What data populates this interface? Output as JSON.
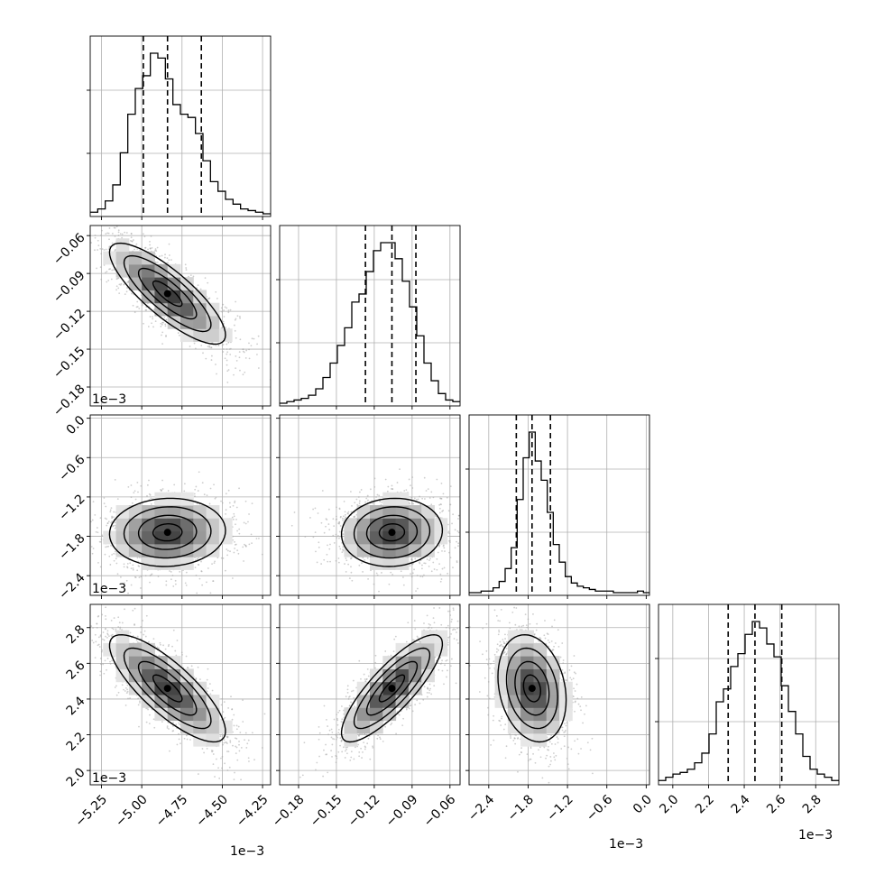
{
  "chart_data": {
    "type": "corner",
    "grid": true,
    "parameters": [
      {
        "range": [
          -5.32,
          -4.2
        ],
        "ticks": [
          -5.25,
          -5.0,
          -4.75,
          -4.5,
          -4.25
        ],
        "tick_labels": [
          "−5.25",
          "−5.00",
          "−4.75",
          "−4.50",
          "−4.25"
        ],
        "offset_label": "1e−3",
        "quantiles": [
          -4.99,
          -4.84,
          -4.63
        ]
      },
      {
        "range": [
          -0.195,
          -0.052
        ],
        "ticks": [
          -0.18,
          -0.15,
          -0.12,
          -0.09,
          -0.06
        ],
        "tick_labels": [
          "−0.18",
          "−0.15",
          "−0.12",
          "−0.09",
          "−0.06"
        ],
        "offset_label": "1e−3",
        "quantiles": [
          -0.127,
          -0.106,
          -0.087
        ]
      },
      {
        "range": [
          -2.7,
          0.05
        ],
        "ticks": [
          -2.4,
          -1.8,
          -1.2,
          -0.6,
          0.0
        ],
        "tick_labels": [
          "−2.4",
          "−1.8",
          "−1.2",
          "−0.6",
          "0.0"
        ],
        "offset_label": "1e−3",
        "quantiles": [
          -1.98,
          -1.74,
          -1.46
        ]
      },
      {
        "range": [
          1.92,
          2.93
        ],
        "ticks": [
          2.0,
          2.2,
          2.4,
          2.6,
          2.8
        ],
        "tick_labels": [
          "2.0",
          "2.2",
          "2.4",
          "2.6",
          "2.8"
        ],
        "offset_label": "1e−3",
        "quantiles": [
          2.31,
          2.46,
          2.61
        ]
      }
    ],
    "histograms": [
      [
        1,
        3,
        8,
        18,
        38,
        62,
        78,
        86,
        100,
        97,
        84,
        68,
        62,
        60,
        50,
        33,
        20,
        14,
        9,
        6,
        3,
        2,
        1,
        0
      ],
      [
        0,
        1,
        2,
        3,
        5,
        9,
        16,
        25,
        36,
        47,
        63,
        68,
        82,
        95,
        100,
        100,
        90,
        76,
        60,
        42,
        25,
        14,
        6,
        2,
        1
      ],
      [
        0,
        0,
        1,
        1,
        3,
        7,
        15,
        28,
        58,
        84,
        100,
        82,
        70,
        50,
        30,
        19,
        10,
        6,
        4,
        3,
        2,
        1,
        1,
        1,
        0,
        0,
        0,
        0,
        1,
        0
      ],
      [
        1,
        3,
        5,
        6,
        8,
        12,
        18,
        30,
        50,
        58,
        72,
        80,
        92,
        100,
        96,
        86,
        78,
        60,
        44,
        30,
        16,
        8,
        5,
        3,
        1
      ]
    ],
    "correlations": [
      [
        1.0,
        -0.82,
        0.05,
        -0.8
      ],
      [
        -0.82,
        1.0,
        0.06,
        0.83
      ],
      [
        0.05,
        0.06,
        1.0,
        -0.22
      ],
      [
        -0.8,
        0.83,
        -0.22,
        1.0
      ]
    ],
    "contour_levels": [
      "39.3%",
      "86.5%",
      "98.9%"
    ]
  },
  "colors": {
    "line": "#000000",
    "grid": "#b0b0b0",
    "scatter": "#a6a6a6"
  }
}
